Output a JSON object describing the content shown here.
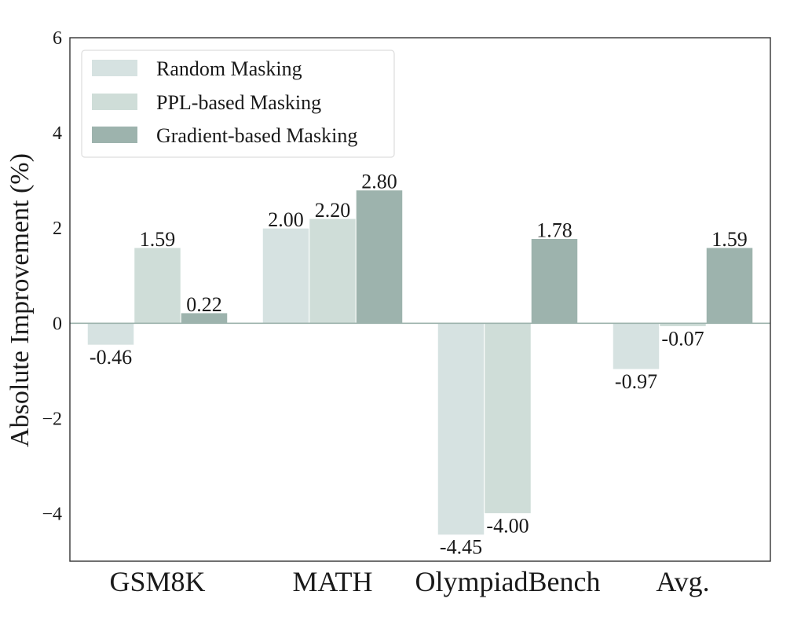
{
  "chart_data": {
    "type": "bar",
    "ylabel": "Absolute Improvement (%)",
    "xlabel": "",
    "title": "",
    "ylim": [
      -5,
      6
    ],
    "yticks": [
      -4,
      -2,
      0,
      2,
      4,
      6
    ],
    "ytick_labels": [
      "−4",
      "−2",
      "0",
      "2",
      "4",
      "6"
    ],
    "categories": [
      "GSM8K",
      "MATH",
      "OlympiadBench",
      "Avg."
    ],
    "series": [
      {
        "name": "Random Masking",
        "color": "#d6e2e1",
        "values": [
          -0.46,
          2.0,
          -4.45,
          -0.97
        ],
        "labels": [
          "-0.46",
          "2.00",
          "-4.45",
          "-0.97"
        ]
      },
      {
        "name": "PPL-based Masking",
        "color": "#cfddd8",
        "values": [
          1.59,
          2.2,
          -4.0,
          -0.07
        ],
        "labels": [
          "1.59",
          "2.20",
          "-4.00",
          "-0.07"
        ]
      },
      {
        "name": "Gradient-based Masking",
        "color": "#9db3ad",
        "values": [
          0.22,
          2.8,
          1.78,
          1.59
        ],
        "labels": [
          "0.22",
          "2.80",
          "1.78",
          "1.59"
        ]
      }
    ],
    "legend": "top-left",
    "grid": false,
    "zero_line_color": "#9db3ad"
  }
}
